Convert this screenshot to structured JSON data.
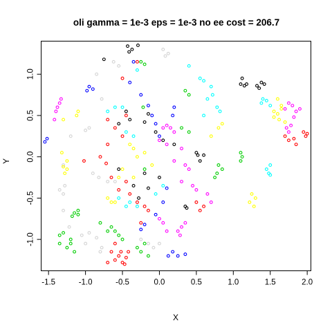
{
  "chart_data": {
    "type": "scatter",
    "title": "oli gamma = 1e-3 eps = 1e-3 no ee cost = 206.7",
    "xlabel": "X",
    "ylabel": "Y",
    "xlim": [
      -1.6,
      2.05
    ],
    "ylim": [
      -1.38,
      1.4
    ],
    "x_ticks": [
      -1.5,
      -1.0,
      -0.5,
      0.0,
      0.5,
      1.0,
      1.5,
      2.0
    ],
    "x_tick_labels": [
      "-1.5",
      "-1.0",
      "-0.5",
      "0.0",
      "0.5",
      "1.0",
      "1.5",
      "2.0"
    ],
    "y_ticks": [
      -1.0,
      -0.5,
      0.0,
      0.5,
      1.0
    ],
    "y_tick_labels": [
      "-1.0",
      "-0.5",
      "0.0",
      "0.5",
      "1.0"
    ],
    "grid": false,
    "legend": "none",
    "marker": "open-circle",
    "series": [
      {
        "color": "#000000",
        "points": [
          [
            -0.43,
            1.34
          ],
          [
            -0.37,
            1.3
          ],
          [
            -0.29,
            1.35
          ],
          [
            -0.41,
            1.27
          ],
          [
            -0.75,
            1.18
          ],
          [
            1.12,
            0.95
          ],
          [
            1.15,
            0.86
          ],
          [
            1.18,
            0.88
          ],
          [
            1.1,
            0.88
          ],
          [
            1.32,
            0.86
          ],
          [
            1.38,
            0.9
          ],
          [
            1.42,
            0.88
          ],
          [
            1.35,
            0.83
          ],
          [
            -0.45,
            0.55
          ],
          [
            -0.15,
            0.52
          ],
          [
            -0.4,
            0.45
          ],
          [
            -0.55,
            0.4
          ],
          [
            -0.2,
            0.42
          ],
          [
            -0.05,
            0.3
          ],
          [
            0.05,
            0.2
          ],
          [
            0.2,
            0.15
          ],
          [
            0.5,
            0.05
          ],
          [
            0.6,
            0.02
          ],
          [
            0.55,
            -0.05
          ],
          [
            0.52,
            0.02
          ],
          [
            -0.55,
            -0.15
          ],
          [
            -0.35,
            -0.35
          ],
          [
            -0.15,
            -0.38
          ],
          [
            0.0,
            -0.25
          ],
          [
            -0.2,
            -0.2
          ],
          [
            -0.28,
            -0.5
          ],
          [
            0.37,
            -0.62
          ],
          [
            0.35,
            -0.6
          ]
        ]
      },
      {
        "color": "#d3d3d3",
        "points": [
          [
            0.05,
            1.3
          ],
          [
            0.12,
            1.25
          ],
          [
            0.08,
            1.22
          ],
          [
            -0.55,
            1.1
          ],
          [
            -0.62,
            1.15
          ],
          [
            -0.85,
            1.0
          ],
          [
            -0.78,
            0.7
          ],
          [
            -1.0,
            0.32
          ],
          [
            -0.95,
            0.35
          ],
          [
            -1.2,
            0.25
          ],
          [
            -1.3,
            -0.1
          ],
          [
            -1.28,
            -0.35
          ],
          [
            -1.35,
            -0.4
          ],
          [
            -1.3,
            -0.45
          ],
          [
            -1.22,
            -0.85
          ],
          [
            -1.3,
            -0.65
          ],
          [
            -1.05,
            -0.95
          ],
          [
            -0.95,
            -0.92
          ],
          [
            -0.85,
            -0.98
          ],
          [
            -0.78,
            -1.1
          ],
          [
            -0.8,
            -1.15
          ],
          [
            -1.0,
            -1.05
          ],
          [
            -0.25,
            -1.0
          ],
          [
            -0.15,
            -1.05
          ],
          [
            -0.08,
            -1.1
          ],
          [
            0.0,
            -1.05
          ],
          [
            -0.6,
            -0.3
          ],
          [
            -0.7,
            -0.3
          ],
          [
            -0.82,
            -0.25
          ],
          [
            -0.9,
            -0.2
          ]
        ]
      },
      {
        "color": "#ff00ff",
        "points": [
          [
            -1.38,
            0.6
          ],
          [
            -1.4,
            0.55
          ],
          [
            -1.35,
            0.65
          ],
          [
            -1.33,
            0.7
          ],
          [
            -1.42,
            0.45
          ],
          [
            1.75,
            0.65
          ],
          [
            1.8,
            0.62
          ],
          [
            1.85,
            0.55
          ],
          [
            1.9,
            0.58
          ],
          [
            1.82,
            0.48
          ],
          [
            1.7,
            0.58
          ],
          [
            1.78,
            0.38
          ],
          [
            1.72,
            0.35
          ],
          [
            1.75,
            0.3
          ],
          [
            0.05,
            0.35
          ],
          [
            0.1,
            0.38
          ],
          [
            0.15,
            0.35
          ],
          [
            0.2,
            0.3
          ],
          [
            0.0,
            0.2
          ],
          [
            0.1,
            0.15
          ],
          [
            0.3,
            0.1
          ],
          [
            0.2,
            -0.05
          ],
          [
            0.35,
            -0.1
          ],
          [
            0.4,
            -0.15
          ],
          [
            0.3,
            -0.3
          ],
          [
            0.45,
            -0.35
          ],
          [
            0.5,
            -0.4
          ],
          [
            0.65,
            -0.45
          ],
          [
            0.7,
            -0.55
          ],
          [
            0.0,
            -0.75
          ],
          [
            0.05,
            -0.8
          ],
          [
            0.3,
            -0.85
          ],
          [
            0.35,
            -0.8
          ],
          [
            0.25,
            -0.9
          ],
          [
            0.28,
            -0.95
          ],
          [
            0.1,
            -0.9
          ]
        ]
      },
      {
        "color": "#ff0000",
        "points": [
          [
            -0.3,
            1.15
          ],
          [
            -0.5,
            0.95
          ],
          [
            -0.45,
            0.5
          ],
          [
            -0.7,
            0.45
          ],
          [
            -0.6,
            0.35
          ],
          [
            -0.5,
            0.25
          ],
          [
            -0.7,
            0.15
          ],
          [
            -0.8,
            0.0
          ],
          [
            -0.72,
            -0.08
          ],
          [
            -1.02,
            -0.05
          ],
          [
            -0.65,
            -0.25
          ],
          [
            -0.45,
            -0.3
          ],
          [
            -0.55,
            -0.4
          ],
          [
            -0.4,
            -0.45
          ],
          [
            -0.3,
            -0.55
          ],
          [
            -0.2,
            -0.6
          ],
          [
            -0.15,
            -0.65
          ],
          [
            -0.25,
            -0.8
          ],
          [
            0.5,
            -0.55
          ],
          [
            0.55,
            -0.65
          ],
          [
            0.6,
            -0.6
          ],
          [
            -0.65,
            -1.15
          ],
          [
            -0.6,
            -1.25
          ],
          [
            -0.55,
            -1.2
          ],
          [
            -0.5,
            -1.28
          ],
          [
            -0.45,
            -1.22
          ],
          [
            -0.7,
            -1.28
          ],
          [
            -0.52,
            -1.15
          ],
          [
            -0.42,
            -1.15
          ],
          [
            -0.6,
            -1.05
          ],
          [
            -0.47,
            -1.3
          ],
          [
            1.7,
            0.25
          ],
          [
            1.75,
            0.2
          ],
          [
            1.82,
            0.22
          ],
          [
            1.85,
            0.15
          ],
          [
            1.95,
            0.3
          ],
          [
            2.0,
            0.28
          ],
          [
            1.98,
            0.25
          ]
        ]
      },
      {
        "color": "#0000ff",
        "points": [
          [
            -0.4,
            0.9
          ],
          [
            -0.35,
            1.15
          ],
          [
            -0.95,
            0.85
          ],
          [
            -0.98,
            0.8
          ],
          [
            -0.9,
            0.82
          ],
          [
            -1.52,
            0.22
          ],
          [
            -1.55,
            0.18
          ],
          [
            -0.15,
            0.62
          ],
          [
            -0.1,
            0.5
          ],
          [
            -0.05,
            0.4
          ],
          [
            0.0,
            0.25
          ],
          [
            -0.25,
            0.75
          ],
          [
            0.2,
            0.6
          ],
          [
            0.18,
            0.5
          ],
          [
            0.1,
            -0.38
          ],
          [
            0.05,
            -0.55
          ],
          [
            -0.05,
            -0.7
          ],
          [
            -0.2,
            -0.82
          ],
          [
            -0.25,
            -0.88
          ],
          [
            0.12,
            -1.2
          ],
          [
            0.18,
            -1.15
          ],
          [
            0.25,
            -1.2
          ],
          [
            0.35,
            -1.18
          ]
        ]
      },
      {
        "color": "#00ffff",
        "points": [
          [
            0.4,
            1.1
          ],
          [
            0.55,
            0.95
          ],
          [
            0.6,
            0.92
          ],
          [
            0.7,
            0.85
          ],
          [
            0.72,
            0.75
          ],
          [
            0.65,
            0.7
          ],
          [
            0.78,
            0.6
          ],
          [
            0.82,
            0.55
          ],
          [
            0.6,
            0.5
          ],
          [
            1.38,
            0.65
          ],
          [
            1.45,
            0.68
          ],
          [
            1.5,
            0.62
          ],
          [
            1.4,
            0.7
          ],
          [
            1.45,
            -0.15
          ],
          [
            1.5,
            -0.1
          ],
          [
            1.48,
            -0.2
          ],
          [
            1.5,
            -0.22
          ],
          [
            -0.6,
            0.6
          ],
          [
            -0.7,
            0.55
          ],
          [
            -0.5,
            0.6
          ],
          [
            -0.45,
            0.3
          ],
          [
            -0.35,
            0.25
          ],
          [
            -0.55,
            -0.5
          ],
          [
            -0.45,
            -0.6
          ],
          [
            -0.3,
            -0.6
          ],
          [
            -0.4,
            -0.55
          ],
          [
            -0.05,
            -0.45
          ],
          [
            0.05,
            -0.35
          ],
          [
            -0.3,
            1.05
          ]
        ]
      },
      {
        "color": "#00cd00",
        "points": [
          [
            -0.25,
            1.15
          ],
          [
            -0.2,
            1.12
          ],
          [
            -0.22,
            0.6
          ],
          [
            0.35,
            0.8
          ],
          [
            0.4,
            0.75
          ],
          [
            0.3,
            0.35
          ],
          [
            0.4,
            0.3
          ],
          [
            0.8,
            -0.1
          ],
          [
            0.85,
            -0.15
          ],
          [
            0.78,
            -0.2
          ],
          [
            0.75,
            -0.25
          ],
          [
            1.1,
            -0.05
          ],
          [
            1.12,
            0.0
          ],
          [
            1.1,
            0.05
          ],
          [
            -1.1,
            -0.65
          ],
          [
            -1.15,
            -0.68
          ],
          [
            -1.1,
            -0.7
          ],
          [
            -1.18,
            -0.72
          ],
          [
            -1.35,
            -0.95
          ],
          [
            -1.3,
            -0.92
          ],
          [
            -1.35,
            -1.05
          ],
          [
            -1.25,
            -1.1
          ],
          [
            -1.2,
            -1.05
          ],
          [
            -1.2,
            -1.0
          ],
          [
            -1.15,
            -1.15
          ],
          [
            -0.65,
            -0.85
          ],
          [
            -0.7,
            -0.9
          ],
          [
            -0.6,
            -0.9
          ],
          [
            -0.55,
            -0.95
          ],
          [
            -0.5,
            -1.0
          ],
          [
            -0.25,
            -1.15
          ],
          [
            -0.2,
            -1.05
          ],
          [
            -0.15,
            -1.2
          ],
          [
            -0.3,
            -1.1
          ],
          [
            -0.8,
            -0.8
          ],
          [
            -0.2,
            -0.15
          ]
        ]
      },
      {
        "color": "#ffff00",
        "points": [
          [
            -1.1,
            0.55
          ],
          [
            -1.12,
            0.5
          ],
          [
            -1.3,
            0.45
          ],
          [
            -1.32,
            0.05
          ],
          [
            -1.25,
            -0.05
          ],
          [
            -1.3,
            -0.12
          ],
          [
            -1.25,
            -0.15
          ],
          [
            -1.28,
            -0.2
          ],
          [
            -0.7,
            -0.5
          ],
          [
            -0.65,
            -0.55
          ],
          [
            -0.6,
            -0.55
          ],
          [
            -0.4,
            0.15
          ],
          [
            -0.35,
            0.1
          ],
          [
            -0.3,
            0.0
          ],
          [
            -0.2,
            0.05
          ],
          [
            -0.1,
            -0.1
          ],
          [
            -0.5,
            -0.15
          ],
          [
            -0.55,
            -0.25
          ],
          [
            -0.35,
            -0.25
          ],
          [
            1.55,
            0.55
          ],
          [
            1.6,
            0.52
          ],
          [
            1.65,
            0.58
          ],
          [
            1.6,
            0.7
          ],
          [
            1.65,
            0.62
          ],
          [
            1.62,
            0.45
          ],
          [
            1.55,
            0.48
          ],
          [
            1.7,
            0.42
          ],
          [
            1.25,
            -0.45
          ],
          [
            1.3,
            -0.5
          ],
          [
            1.22,
            -0.55
          ],
          [
            1.28,
            -0.6
          ],
          [
            0.8,
            0.35
          ],
          [
            0.85,
            0.4
          ],
          [
            0.7,
            0.25
          ]
        ]
      }
    ]
  }
}
